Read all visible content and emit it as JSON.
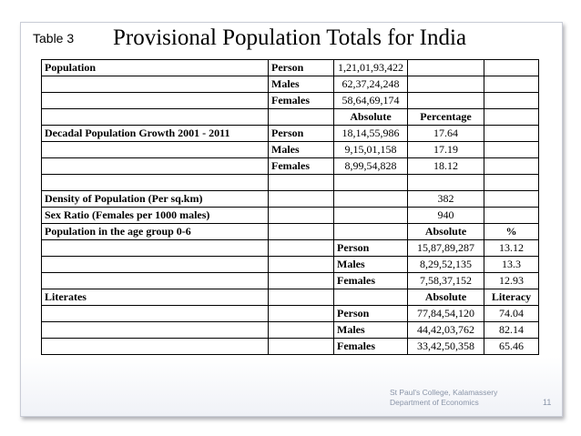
{
  "slide": {
    "table_tag": "Table 3",
    "title": "Provisional Population Totals for India"
  },
  "table": {
    "rows": [
      [
        "Population",
        "Person",
        "1,21,01,93,422",
        "",
        ""
      ],
      [
        "",
        "Males",
        "62,37,24,248",
        "",
        ""
      ],
      [
        "",
        "Females",
        "58,64,69,174",
        "",
        ""
      ],
      [
        "",
        "",
        "Absolute",
        "Percentage",
        ""
      ],
      [
        "Decadal Population Growth 2001 - 2011",
        "Person",
        "18,14,55,986",
        "17.64",
        ""
      ],
      [
        "",
        "Males",
        "9,15,01,158",
        "17.19",
        ""
      ],
      [
        "",
        "Females",
        "8,99,54,828",
        "18.12",
        ""
      ],
      [
        "",
        "",
        "",
        "",
        ""
      ],
      [
        "Density of Population (Per sq.km)",
        "",
        "",
        "382",
        ""
      ],
      [
        "Sex Ratio (Females per 1000 males)",
        "",
        "",
        "940",
        ""
      ],
      [
        "Population in the age group 0-6",
        "",
        "",
        "Absolute",
        "%"
      ],
      [
        "",
        "",
        "Person",
        "15,87,89,287",
        "13.12"
      ],
      [
        "",
        "",
        "Males",
        "8,29,52,135",
        "13.3"
      ],
      [
        "",
        "",
        "Females",
        "7,58,37,152",
        "12.93"
      ],
      [
        "Literates",
        "",
        "",
        "Absolute",
        "Literacy"
      ],
      [
        "",
        "",
        "Person",
        "77,84,54,120",
        "74.04"
      ],
      [
        "",
        "",
        "Males",
        "44,42,03,762",
        "82.14"
      ],
      [
        "",
        "",
        "Females",
        "33,42,50,358",
        "65.46"
      ]
    ]
  },
  "footer": {
    "line1": "St Paul's College, Kalamassery",
    "line2": "Department of Economics",
    "page_number": "11"
  }
}
